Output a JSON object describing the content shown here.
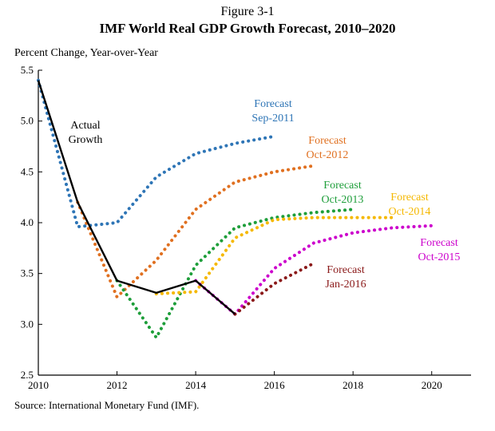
{
  "chart_data": {
    "type": "line",
    "figure_label": "Figure 3-1",
    "title": "IMF World Real GDP Growth Forecast, 2010–2020",
    "ylabel": "Percent Change, Year-over-Year",
    "xlabel": "",
    "source": "Source: International Monetary Fund (IMF).",
    "xlim": [
      2010,
      2021
    ],
    "ylim": [
      2.5,
      5.5
    ],
    "xticks": [
      "2010",
      "2012",
      "2014",
      "2016",
      "2018",
      "2020"
    ],
    "yticks": [
      "2.5",
      "3.0",
      "3.5",
      "4.0",
      "4.5",
      "5.0",
      "5.5"
    ],
    "series": [
      {
        "name": "Actual Growth",
        "label_lines": [
          "Actual",
          "Growth"
        ],
        "style": "solid",
        "color": "#000000",
        "x": [
          2010,
          2011,
          2012,
          2013,
          2014,
          2015
        ],
        "y": [
          5.4,
          4.2,
          3.43,
          3.31,
          3.43,
          3.1
        ]
      },
      {
        "name": "Forecast Sep-2011",
        "label_lines": [
          "Forecast",
          "Sep-2011"
        ],
        "style": "dotted",
        "color": "#2E75B6",
        "x": [
          2010,
          2011,
          2012,
          2013,
          2014,
          2015,
          2016
        ],
        "y": [
          5.4,
          3.96,
          4.0,
          4.45,
          4.68,
          4.78,
          4.85
        ]
      },
      {
        "name": "Forecast Oct-2012",
        "label_lines": [
          "Forecast",
          "Oct-2012"
        ],
        "style": "dotted",
        "color": "#E07020",
        "x": [
          2011,
          2012,
          2013,
          2014,
          2015,
          2016,
          2017
        ],
        "y": [
          4.2,
          3.27,
          3.63,
          4.13,
          4.4,
          4.5,
          4.56
        ]
      },
      {
        "name": "Forecast Oct-2013",
        "label_lines": [
          "Forecast",
          "Oct-2013"
        ],
        "style": "dotted",
        "color": "#1E9E3A",
        "x": [
          2012,
          2013,
          2014,
          2015,
          2016,
          2017,
          2018
        ],
        "y": [
          3.43,
          2.87,
          3.58,
          3.95,
          4.05,
          4.1,
          4.13
        ]
      },
      {
        "name": "Forecast Oct-2014",
        "label_lines": [
          "Forecast",
          "Oct-2014"
        ],
        "style": "dotted",
        "color": "#F5B800",
        "x": [
          2013,
          2014,
          2015,
          2016,
          2017,
          2018,
          2019
        ],
        "y": [
          3.3,
          3.32,
          3.85,
          4.03,
          4.05,
          4.05,
          4.05
        ]
      },
      {
        "name": "Forecast Oct-2015",
        "label_lines": [
          "Forecast",
          "Oct-2015"
        ],
        "style": "dotted",
        "color": "#CC00CC",
        "x": [
          2014,
          2015,
          2016,
          2017,
          2018,
          2019,
          2020
        ],
        "y": [
          3.43,
          3.1,
          3.55,
          3.8,
          3.9,
          3.95,
          3.97
        ]
      },
      {
        "name": "Forecast Jan-2016",
        "label_lines": [
          "Forecast",
          "Jan-2016"
        ],
        "style": "dotted",
        "color": "#8B1A1A",
        "x": [
          2015,
          2016,
          2017
        ],
        "y": [
          3.1,
          3.4,
          3.6
        ]
      }
    ]
  }
}
